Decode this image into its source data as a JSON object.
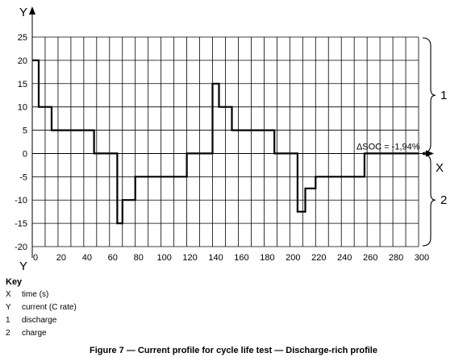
{
  "chart_data": {
    "type": "line",
    "step": true,
    "title": "",
    "xlabel": "X",
    "ylabel": "Y",
    "xlim": [
      0,
      300
    ],
    "ylim": [
      -20,
      25
    ],
    "xticks": [
      "0",
      "20",
      "40",
      "60",
      "80",
      "100",
      "120",
      "140",
      "160",
      "180",
      "200",
      "220",
      "240",
      "260",
      "280",
      "300"
    ],
    "yticks": [
      "25",
      "20",
      "15",
      "10",
      "5",
      "0",
      "-5",
      "-10",
      "-15",
      "-20"
    ],
    "grid": true,
    "series": [
      {
        "points": [
          [
            0,
            20
          ],
          [
            5,
            20
          ],
          [
            5,
            10
          ],
          [
            15,
            10
          ],
          [
            15,
            5
          ],
          [
            48,
            5
          ],
          [
            48,
            0
          ],
          [
            66,
            0
          ],
          [
            66,
            -15
          ],
          [
            70,
            -15
          ],
          [
            70,
            -10
          ],
          [
            80,
            -10
          ],
          [
            80,
            -5
          ],
          [
            120,
            -5
          ],
          [
            120,
            0
          ],
          [
            140,
            0
          ],
          [
            140,
            15
          ],
          [
            145,
            15
          ],
          [
            145,
            10
          ],
          [
            155,
            10
          ],
          [
            155,
            5
          ],
          [
            188,
            5
          ],
          [
            188,
            0
          ],
          [
            206,
            0
          ],
          [
            206,
            -12.5
          ],
          [
            212,
            -12.5
          ],
          [
            212,
            -7.5
          ],
          [
            220,
            -7.5
          ],
          [
            220,
            -5
          ],
          [
            258,
            -5
          ],
          [
            258,
            0
          ],
          [
            300,
            0
          ]
        ]
      }
    ],
    "annotation": {
      "text": "ΔSOC = -1,94%",
      "x": 258,
      "y": 0
    },
    "brackets": [
      {
        "label": "1",
        "from": 25,
        "to": 0
      },
      {
        "label": "2",
        "from": 0,
        "to": -20
      }
    ]
  },
  "key": {
    "title": "Key",
    "items": [
      {
        "symbol": "X",
        "text": "time (s)"
      },
      {
        "symbol": "Y",
        "text": "current (C rate)"
      },
      {
        "symbol": "1",
        "text": "discharge"
      },
      {
        "symbol": "2",
        "text": "charge"
      }
    ]
  },
  "caption": "Figure 7 — Current profile for cycle life test — Discharge-rich profile"
}
